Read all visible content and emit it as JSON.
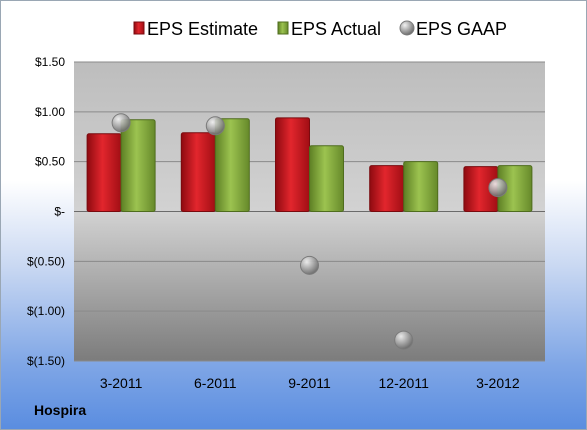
{
  "company_label": "Hospira",
  "colors": {
    "estimate": "#c3151c",
    "actual": "#7fa83a",
    "gaap": "#a9a9a9"
  },
  "chart_data": {
    "type": "bar",
    "categories": [
      "3-2011",
      "6-2011",
      "9-2011",
      "12-2011",
      "3-2012"
    ],
    "series": [
      {
        "name": "EPS Estimate",
        "values": [
          0.78,
          0.79,
          0.94,
          0.46,
          0.45
        ]
      },
      {
        "name": "EPS Actual",
        "values": [
          0.92,
          0.93,
          0.66,
          0.5,
          0.46
        ]
      },
      {
        "name": "EPS GAAP",
        "values": [
          0.89,
          0.86,
          -0.54,
          -1.29,
          0.24
        ],
        "style": "scatter"
      }
    ],
    "y_tick_labels": [
      "$1.50",
      "$1.00",
      "$0.50",
      "$-",
      "$(0.50)",
      "$(1.00)",
      "$(1.50)"
    ],
    "y_tick_values": [
      1.5,
      1.0,
      0.5,
      0,
      -0.5,
      -1.0,
      -1.5
    ],
    "ylim": [
      -1.5,
      1.5
    ],
    "grid": true,
    "legend_position": "top"
  }
}
